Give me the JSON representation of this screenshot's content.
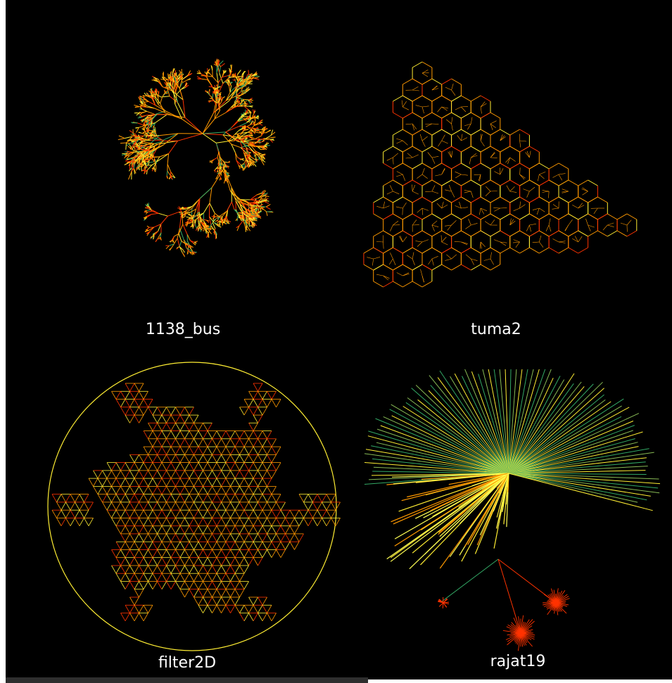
{
  "panels": [
    {
      "label": "1138_bus"
    },
    {
      "label": "tuma2"
    },
    {
      "label": "filter2D"
    },
    {
      "label": "rajat19"
    }
  ],
  "colors": {
    "background": "#000000",
    "edge_red": "#ff3300",
    "edge_orange": "#ff9900",
    "edge_yellow": "#ffee33",
    "edge_green": "#33aa66",
    "caption": "#ffffff"
  }
}
